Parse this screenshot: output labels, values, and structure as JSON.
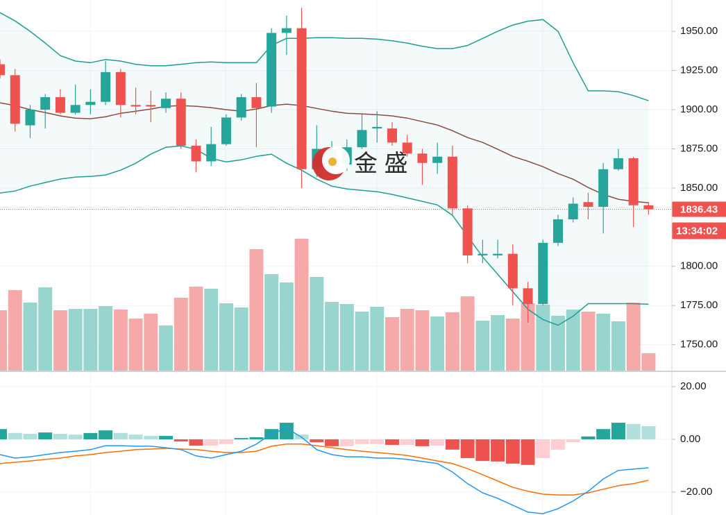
{
  "chart_data": [
    {
      "type": "candlestick",
      "open": [
        1929,
        1922,
        1890,
        1900,
        1908,
        1898,
        1903,
        1905,
        1924,
        1903,
        1903,
        1901,
        1907,
        1877,
        1867,
        1878,
        1895,
        1908,
        1902,
        1949,
        1952,
        1862,
        1864,
        1865,
        1876,
        1888,
        1888,
        1879,
        1872,
        1866,
        1870,
        1837,
        1807,
        1807,
        1808,
        1786,
        1776,
        1815,
        1830,
        1841,
        1838,
        1862,
        1869,
        1839
      ],
      "high": [
        1932,
        1926,
        1903,
        1910,
        1913,
        1916,
        1913,
        1931,
        1926,
        1914,
        1912,
        1911,
        1911,
        1881,
        1889,
        1897,
        1910,
        1917,
        1952,
        1960,
        1965,
        1890,
        1880,
        1881,
        1897,
        1899,
        1892,
        1884,
        1875,
        1879,
        1877,
        1839,
        1817,
        1817,
        1814,
        1790,
        1817,
        1833,
        1844,
        1847,
        1866,
        1875,
        1870,
        1841
      ],
      "low": [
        1920,
        1886,
        1882,
        1888,
        1897,
        1897,
        1897,
        1903,
        1895,
        1897,
        1892,
        1898,
        1875,
        1860,
        1864,
        1877,
        1893,
        1876,
        1898,
        1935,
        1850,
        1857,
        1860,
        1861,
        1875,
        1879,
        1877,
        1870,
        1852,
        1859,
        1833,
        1802,
        1802,
        1805,
        1775,
        1764,
        1775,
        1813,
        1828,
        1830,
        1821,
        1861,
        1825,
        1833
      ],
      "close": [
        1922,
        1891,
        1900,
        1908,
        1898,
        1903,
        1905,
        1924,
        1903,
        1902,
        1902,
        1907,
        1877,
        1867,
        1878,
        1895,
        1908,
        1901,
        1949,
        1952,
        1862,
        1875,
        1875,
        1876,
        1887,
        1889,
        1879,
        1872,
        1866,
        1870,
        1837,
        1807,
        1808,
        1808,
        1786,
        1776,
        1815,
        1830,
        1840,
        1838,
        1862,
        1869,
        1839,
        1836.43
      ],
      "volume": [
        88,
        117,
        99,
        121,
        88,
        90,
        90,
        94,
        89,
        76,
        83,
        66,
        106,
        122,
        119,
        98,
        92,
        176,
        140,
        128,
        191,
        136,
        100,
        97,
        86,
        93,
        78,
        90,
        88,
        79,
        85,
        108,
        73,
        81,
        76,
        98,
        96,
        80,
        89,
        86,
        83,
        72,
        99,
        26
      ],
      "bb_upper": [
        1962,
        1956.6,
        1950,
        1942.5,
        1934.5,
        1931,
        1930,
        1932,
        1931,
        1929,
        1928,
        1928,
        1929,
        1930,
        1930.5,
        1930,
        1930,
        1930,
        1941,
        1945.5,
        1945.5,
        1946,
        1946,
        1945.5,
        1945.5,
        1945,
        1944,
        1942.5,
        1940.5,
        1939,
        1939,
        1941,
        1945.5,
        1950,
        1954,
        1956.5,
        1957.5,
        1950,
        1930,
        1912,
        1912,
        1911.5,
        1909,
        1905.7
      ],
      "bb_middle": [
        1904.4,
        1902.6,
        1900,
        1898.2,
        1896,
        1894.6,
        1894.2,
        1895.5,
        1897.7,
        1899,
        1900.4,
        1902.2,
        1902.6,
        1902.2,
        1901.3,
        1900,
        1899,
        1900.4,
        1902.6,
        1903.5,
        1902.6,
        1900.8,
        1899,
        1897.7,
        1897.3,
        1896.8,
        1896,
        1894.6,
        1892.4,
        1890.2,
        1886.6,
        1882.2,
        1879.1,
        1874.7,
        1870.2,
        1867.1,
        1863.6,
        1859.2,
        1855.6,
        1850.3,
        1845.9,
        1842.8,
        1841.5,
        1840.6
      ],
      "bb_lower": [
        1846.8,
        1848.1,
        1851.2,
        1853.5,
        1855.7,
        1857,
        1857.4,
        1858.3,
        1861.4,
        1865.8,
        1871.6,
        1876,
        1876.9,
        1874.7,
        1868.9,
        1866.7,
        1868,
        1870.2,
        1871.6,
        1865.8,
        1861.4,
        1855.7,
        1851.2,
        1849.4,
        1848.5,
        1847.6,
        1845.9,
        1843.7,
        1841.5,
        1839.2,
        1832.6,
        1819.3,
        1806,
        1794.9,
        1783.8,
        1772.6,
        1766,
        1762.4,
        1768.2,
        1776.2,
        1776.2,
        1776.2,
        1776.2,
        1775.8
      ],
      "ylim": [
        1733,
        1970
      ],
      "yticks": [
        {
          "value": 1950,
          "label": "1950.00"
        },
        {
          "value": 1925,
          "label": "1925.00"
        },
        {
          "value": 1900,
          "label": "1900.00"
        },
        {
          "value": 1875,
          "label": "1875.00"
        },
        {
          "value": 1850,
          "label": "1850.00"
        },
        {
          "value": 1800,
          "label": "1800.00"
        },
        {
          "value": 1775,
          "label": "1775.00"
        },
        {
          "value": 1750,
          "label": "1750.00"
        }
      ],
      "grid": true,
      "countdown": "13:34:02",
      "watermark": "金 盛",
      "up_color": "#26a69a",
      "down_color": "#ef5350",
      "volume_up_color": "#99d5cf",
      "volume_down_color": "#f6a9a9",
      "band_color": "#1f9d93",
      "middle_color": "#8b4a3f"
    },
    {
      "type": "macd",
      "histogram": [
        3.9,
        2.4,
        2.1,
        2.6,
        2.1,
        1.8,
        2.4,
        3.4,
        2.4,
        1.8,
        1.3,
        1.3,
        -0.8,
        -2.4,
        -2.4,
        -1.8,
        0.5,
        0.8,
        3.9,
        6.3,
        1.8,
        -1.1,
        -2.6,
        -2.6,
        -1.8,
        -1.8,
        -2.1,
        -2.1,
        -2.6,
        -2.4,
        -3.9,
        -7.1,
        -8.2,
        -8.4,
        -9.2,
        -9.7,
        -7.1,
        -3.9,
        -1.1,
        1.1,
        3.9,
        6.3,
        5.8,
        5.0
      ],
      "macd": [
        -5.8,
        -7.1,
        -6.6,
        -5.8,
        -5,
        -4.5,
        -3.9,
        -2.4,
        -2.4,
        -2.6,
        -2.6,
        -3.2,
        -3.9,
        -6.3,
        -7.1,
        -5.8,
        -4.5,
        -1.8,
        2.1,
        4.2,
        0.8,
        -3.9,
        -5.8,
        -6.6,
        -6.6,
        -7.1,
        -7.1,
        -7.6,
        -8.4,
        -9.2,
        -12.4,
        -16.8,
        -20.3,
        -22.4,
        -25,
        -27.6,
        -28.2,
        -26.3,
        -23.4,
        -19.7,
        -15,
        -11.8,
        -11.3,
        -10.8
      ],
      "signal": [
        -9.2,
        -8.7,
        -8.2,
        -7.6,
        -7.1,
        -6.3,
        -5.8,
        -5,
        -4.5,
        -3.9,
        -3.7,
        -3.4,
        -3.7,
        -3.9,
        -4.5,
        -5,
        -5,
        -4.5,
        -2.6,
        -1.8,
        -1.8,
        -2.4,
        -3.2,
        -3.9,
        -4.5,
        -5,
        -5.5,
        -6.1,
        -7.1,
        -8.2,
        -9.2,
        -11.1,
        -13.4,
        -15.8,
        -18.2,
        -19.7,
        -20.8,
        -21.1,
        -21.1,
        -20.3,
        -18.9,
        -17.6,
        -16.8,
        -15.5
      ],
      "ylim": [
        -28.7,
        25.8
      ],
      "yticks": [
        {
          "value": 20,
          "label": "20.00"
        },
        {
          "value": 0,
          "label": "0.00"
        },
        {
          "value": -20,
          "label": "−20.00"
        }
      ],
      "grid": true,
      "macd_color": "#2196f3",
      "signal_color": "#ff6d00",
      "hist_colors": [
        "#26a69a",
        "#b2dfdb",
        "#ef5350",
        "#ffcdd2"
      ]
    }
  ]
}
